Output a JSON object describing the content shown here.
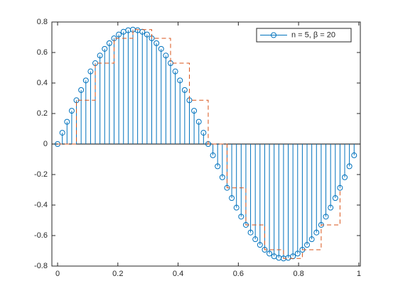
{
  "chart_data": {
    "type": "stem",
    "series": [
      {
        "name": "n = 5,  β = 20",
        "color": "#0072bd",
        "x": [
          0,
          0.015625,
          0.03125,
          0.046875,
          0.0625,
          0.078125,
          0.09375,
          0.109375,
          0.125,
          0.140625,
          0.15625,
          0.171875,
          0.1875,
          0.203125,
          0.21875,
          0.234375,
          0.25,
          0.265625,
          0.28125,
          0.296875,
          0.3125,
          0.328125,
          0.34375,
          0.359375,
          0.375,
          0.390625,
          0.40625,
          0.421875,
          0.4375,
          0.453125,
          0.46875,
          0.484375,
          0.5,
          0.515625,
          0.53125,
          0.546875,
          0.5625,
          0.578125,
          0.59375,
          0.609375,
          0.625,
          0.640625,
          0.65625,
          0.671875,
          0.6875,
          0.703125,
          0.71875,
          0.734375,
          0.75,
          0.765625,
          0.78125,
          0.796875,
          0.8125,
          0.828125,
          0.84375,
          0.859375,
          0.875,
          0.890625,
          0.90625,
          0.921875,
          0.9375,
          0.953125,
          0.96875,
          0.984375
        ],
        "values": [
          0,
          0.074,
          0.146,
          0.218,
          0.287,
          0.354,
          0.417,
          0.476,
          0.53,
          0.58,
          0.624,
          0.661,
          0.693,
          0.718,
          0.736,
          0.746,
          0.75,
          0.746,
          0.736,
          0.718,
          0.693,
          0.661,
          0.624,
          0.58,
          0.53,
          0.476,
          0.417,
          0.354,
          0.287,
          0.218,
          0.146,
          0.074,
          0,
          -0.074,
          -0.146,
          -0.218,
          -0.287,
          -0.354,
          -0.417,
          -0.476,
          -0.53,
          -0.58,
          -0.624,
          -0.661,
          -0.693,
          -0.718,
          -0.736,
          -0.746,
          -0.75,
          -0.746,
          -0.736,
          -0.718,
          -0.693,
          -0.661,
          -0.624,
          -0.58,
          -0.53,
          -0.476,
          -0.417,
          -0.354,
          -0.287,
          -0.218,
          -0.146,
          -0.074
        ]
      },
      {
        "type": "stairs",
        "color": "#d95319",
        "x": [
          0,
          0.0625,
          0.125,
          0.1875,
          0.25,
          0.3125,
          0.375,
          0.4375,
          0.5,
          0.5625,
          0.625,
          0.6875,
          0.75,
          0.8125,
          0.875,
          0.9375
        ],
        "values": [
          0,
          0.287,
          0.53,
          0.693,
          0.75,
          0.693,
          0.53,
          0.287,
          0,
          -0.287,
          -0.53,
          -0.693,
          -0.75,
          -0.693,
          -0.53,
          -0.287
        ]
      }
    ],
    "xlim": [
      -0.019,
      1.005
    ],
    "xticks": [
      0,
      0.2,
      0.4,
      0.6,
      0.8,
      1
    ],
    "ylim": [
      -0.8,
      0.8
    ],
    "yticks": [
      -0.8,
      -0.6,
      -0.4,
      -0.2,
      0,
      0.2,
      0.4,
      0.6,
      0.8
    ],
    "legend": "northeast"
  }
}
